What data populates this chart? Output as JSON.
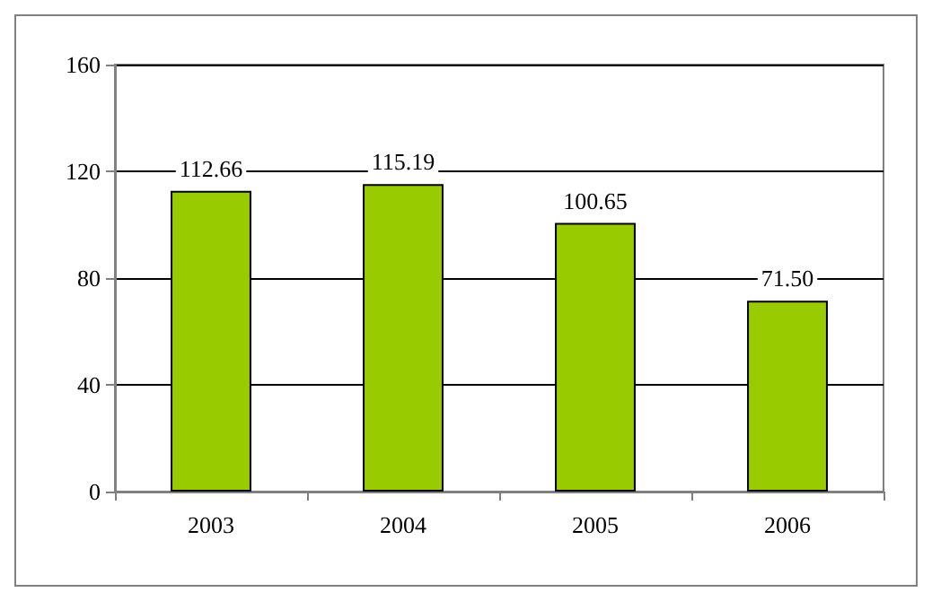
{
  "chart_data": {
    "type": "bar",
    "categories": [
      "2003",
      "2004",
      "2005",
      "2006"
    ],
    "values": [
      112.66,
      115.19,
      100.65,
      71.5
    ],
    "value_labels": [
      "112.66",
      "115.19",
      "100.65",
      "71.50"
    ],
    "color": "#99cc00",
    "ylim": [
      0,
      160
    ],
    "yticks": [
      0,
      40,
      80,
      120,
      160
    ],
    "grid": "y"
  }
}
